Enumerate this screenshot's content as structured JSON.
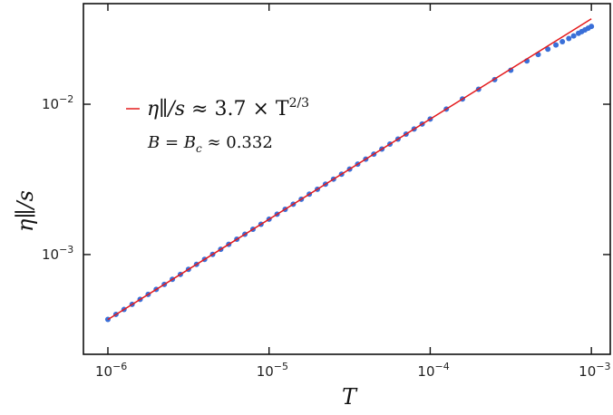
{
  "chart_data": {
    "type": "scatter",
    "xscale": "log",
    "yscale": "log",
    "xlabel": "T",
    "ylabel": "η∥/s",
    "xlim": [
      7.05e-07,
      0.00131
    ],
    "ylim": [
      0.000217,
      0.0467
    ],
    "grid": false,
    "x_ticks": [
      {
        "value": 1e-06,
        "base": "10",
        "exp": "−6"
      },
      {
        "value": 1e-05,
        "base": "10",
        "exp": "−5"
      },
      {
        "value": 0.0001,
        "base": "10",
        "exp": "−4"
      },
      {
        "value": 0.001,
        "base": "10",
        "exp": "−3"
      }
    ],
    "y_ticks": [
      {
        "value": 0.001,
        "base": "10",
        "exp": "−3"
      },
      {
        "value": 0.01,
        "base": "10",
        "exp": "−2"
      }
    ],
    "series": [
      {
        "kind": "points",
        "color": "#3a6fd8",
        "x": [
          1e-06,
          1.122e-06,
          1.259e-06,
          1.413e-06,
          1.585e-06,
          1.778e-06,
          1.995e-06,
          2.239e-06,
          2.512e-06,
          2.818e-06,
          3.162e-06,
          3.548e-06,
          3.981e-06,
          4.467e-06,
          5.012e-06,
          5.623e-06,
          6.31e-06,
          7.079e-06,
          7.943e-06,
          8.913e-06,
          1e-05,
          1.122e-05,
          1.259e-05,
          1.413e-05,
          1.585e-05,
          1.778e-05,
          1.995e-05,
          2.239e-05,
          2.512e-05,
          2.818e-05,
          3.162e-05,
          3.548e-05,
          3.981e-05,
          4.467e-05,
          5.012e-05,
          5.623e-05,
          6.31e-05,
          7.079e-05,
          7.943e-05,
          8.913e-05,
          0.0001,
          0.0001259,
          0.0001585,
          0.0001995,
          0.0002512,
          0.0003162,
          0.0003981,
          0.0004677,
          0.000537,
          0.0006026,
          0.0006607,
          0.0007244,
          0.0007762,
          0.0008318,
          0.000871,
          0.000912,
          0.000955,
          0.001
        ],
        "y": [
          0.00037,
          0.0004,
          0.000431,
          0.000466,
          0.000503,
          0.000543,
          0.000586,
          0.000633,
          0.000684,
          0.000738,
          0.000797,
          0.000861,
          0.000929,
          0.001003,
          0.001084,
          0.00117,
          0.001264,
          0.001364,
          0.001473,
          0.001591,
          0.001718,
          0.001857,
          0.002,
          0.002163,
          0.002335,
          0.002521,
          0.00272,
          0.002938,
          0.003175,
          0.003426,
          0.0037,
          0.003997,
          0.004312,
          0.004656,
          0.005032,
          0.005431,
          0.005867,
          0.006332,
          0.006838,
          0.007385,
          0.00797,
          0.00929,
          0.01083,
          0.01257,
          0.01458,
          0.01683,
          0.01942,
          0.02142,
          0.02324,
          0.02481,
          0.02606,
          0.02736,
          0.02848,
          0.02964,
          0.03042,
          0.0312,
          0.03203,
          0.03293
        ]
      },
      {
        "kind": "fit-line",
        "name": "η∥/s ≈ 3.7 × T^(2/3)",
        "color": "#e41a1c",
        "coefficient": 3.7,
        "exponent": 0.6667,
        "x_range": [
          1e-06,
          0.001
        ]
      }
    ],
    "legend": {
      "placement": "upper-left",
      "lhs": "η∥/s",
      "rhs": " ≈ 3.7 × T",
      "exp": "2/3"
    },
    "annotation": {
      "lhs": "B = B",
      "sub": "c",
      "rhs": " ≈ 0.332"
    }
  }
}
